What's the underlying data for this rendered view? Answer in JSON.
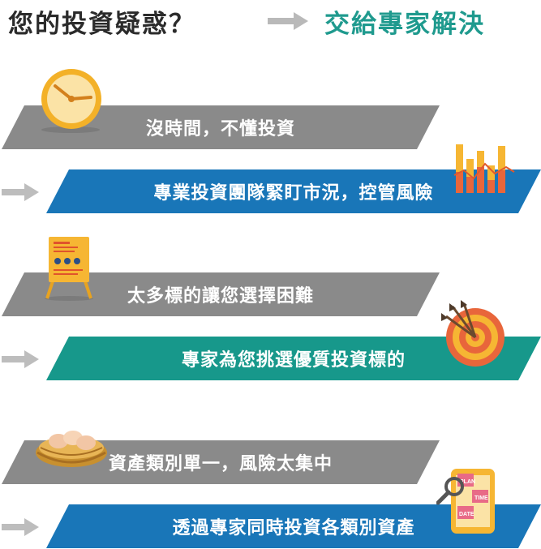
{
  "heading": {
    "question": "您的投資疑惑？",
    "answer": "交給專家解決"
  },
  "colors": {
    "gray_banner": "#8a8a8a",
    "blue_banner": "#1976b8",
    "teal_banner": "#17988b",
    "answer_text": "#1f9a8e"
  },
  "rows": [
    {
      "problem": "沒時間，不懂投資",
      "solution": "專業投資團隊緊盯市況，控管風險",
      "problem_icon": "clock-icon",
      "solution_icon": "bar-chart-icon"
    },
    {
      "problem": "太多標的讓您選擇困難",
      "solution": "專家為您挑選優質投資標的",
      "problem_icon": "signboard-icon",
      "solution_icon": "target-dart-icon"
    },
    {
      "problem": "資產類別單一，風險太集中",
      "solution": "透過專家同時投資各類別資產",
      "problem_icon": "nest-eggs-icon",
      "solution_icon": "planner-phone-icon"
    }
  ],
  "planner_labels": {
    "plan": "PLAN",
    "time": "TIME",
    "date": "DATE"
  }
}
